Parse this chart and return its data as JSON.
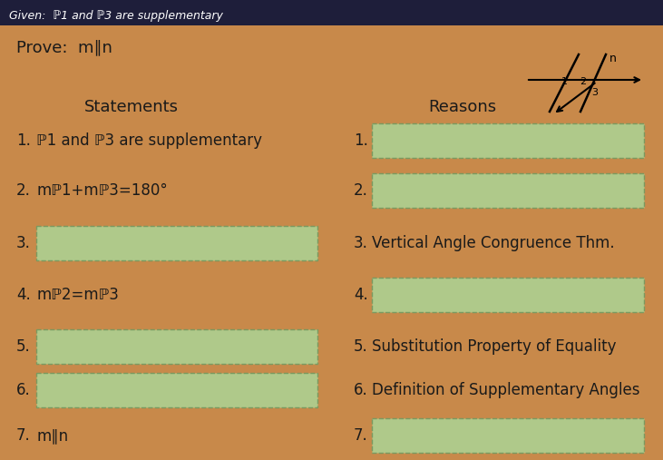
{
  "bg_color": "#c8894a",
  "top_bar_color": "#1e1e3a",
  "given_text": "Given:  ℙ1 and ℙ3 are supplementary",
  "prove_text": "Prove:  m∥n",
  "header_statements": "Statements",
  "header_reasons": "Reasons",
  "rows": [
    {
      "num": "1.",
      "statement": "ℙ1 and ℙ3 are supplementary",
      "reason": "",
      "stmt_box": false,
      "rsn_box": true
    },
    {
      "num": "2.",
      "statement": "mℙ1+mℙ3=180°",
      "reason": "",
      "stmt_box": false,
      "rsn_box": true
    },
    {
      "num": "3.",
      "statement": "",
      "reason": "Vertical Angle Congruence Thm.",
      "stmt_box": true,
      "rsn_box": false
    },
    {
      "num": "4.",
      "statement": "mℙ2=mℙ3",
      "reason": "",
      "stmt_box": false,
      "rsn_box": true
    },
    {
      "num": "5.",
      "statement": "",
      "reason": "Substitution Property of Equality",
      "stmt_box": true,
      "rsn_box": false
    },
    {
      "num": "6.",
      "statement": "",
      "reason": "Definition of Supplementary Angles",
      "stmt_box": true,
      "rsn_box": false
    },
    {
      "num": "7.",
      "statement": "m∥n",
      "reason": "",
      "stmt_box": false,
      "rsn_box": true
    }
  ],
  "box_fill_color": "#afc98a",
  "box_edge_color": "#7a9a60",
  "text_color": "#1a1a1a",
  "font_size_main": 12,
  "font_size_header": 13,
  "font_size_prove": 13,
  "font_size_given": 9
}
